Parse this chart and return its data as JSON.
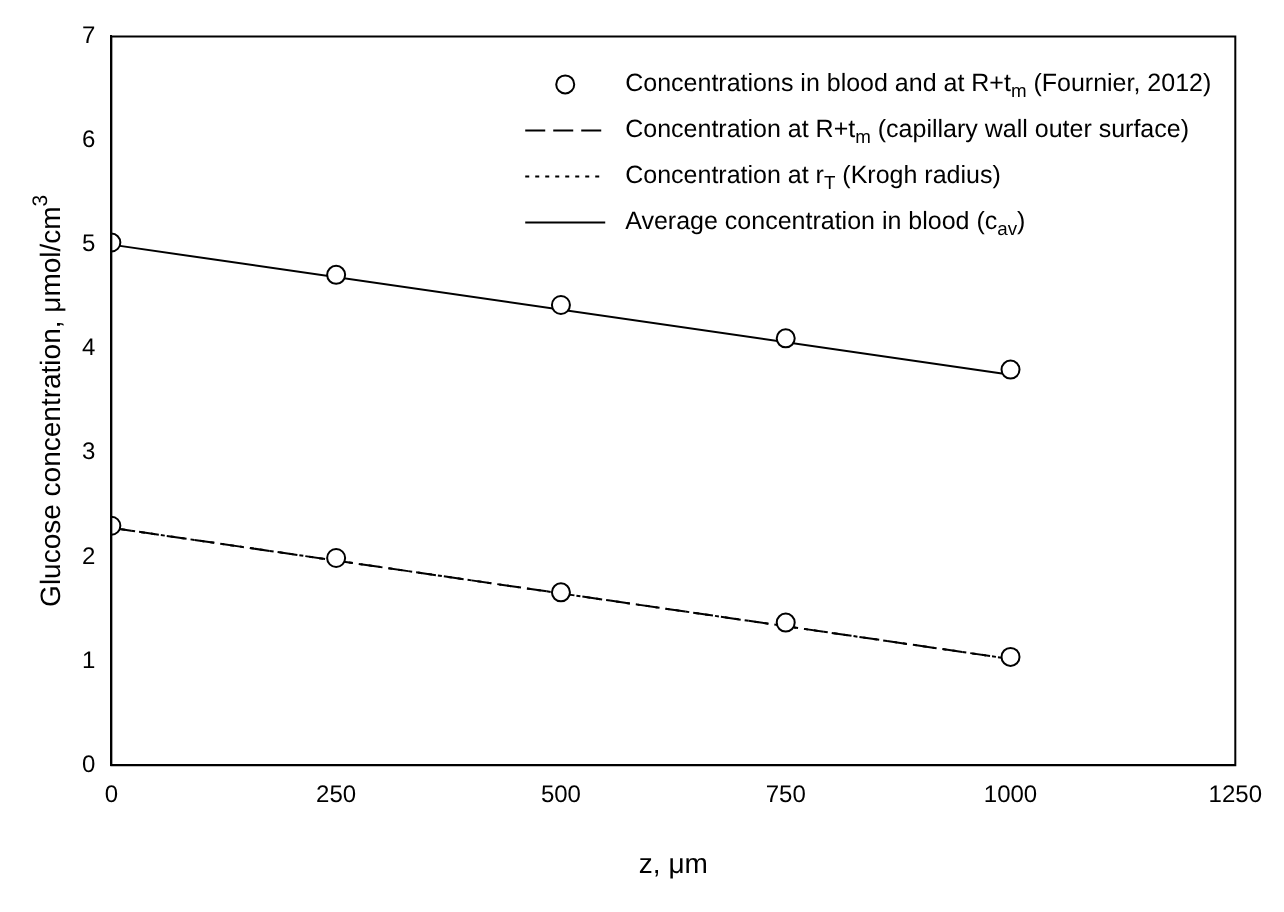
{
  "chart_data": {
    "type": "line",
    "xlabel": "z, μm",
    "ylabel": "Glucose concentration, μmol/cm$^{3}$",
    "xlim": [
      0,
      1250
    ],
    "xticks": [
      0,
      250,
      500,
      750,
      1000,
      1250
    ],
    "ylim": [
      0,
      7
    ],
    "yticks": [
      0,
      1,
      2,
      3,
      4,
      5,
      6,
      7
    ],
    "grid": false,
    "legend": "top right",
    "series": [
      {
        "type": "scatter",
        "name": "Concentrations in blood and at R+t$_{m}$ (Fournier, 2012)",
        "color": "#000000",
        "marker": "circle",
        "x": [
          0,
          250,
          500,
          750,
          1000,
          0,
          250,
          500,
          750,
          1000
        ],
        "values": [
          5.02,
          4.71,
          4.42,
          4.1,
          3.8,
          2.3,
          1.99,
          1.66,
          1.37,
          1.04
        ]
      },
      {
        "name": "Concentration at R+t$_{m}$ (capillary wall outer surface)",
        "color": "#000000",
        "marker": "none",
        "line_style": "dashed",
        "x": [
          0,
          1000
        ],
        "values": [
          2.28,
          1.02
        ]
      },
      {
        "name": "Concentration at r$_{T}$ (Krogh radius)",
        "color": "#000000",
        "marker": "none",
        "line_style": "dotted",
        "x": [
          0,
          1000
        ],
        "values": [
          2.28,
          1.02
        ]
      },
      {
        "name": "Average concentration in blood (c$_{av}$)",
        "color": "#000000",
        "marker": "none",
        "line_style": "solid",
        "x": [
          0,
          1000
        ],
        "values": [
          5.0,
          3.75
        ]
      }
    ]
  }
}
